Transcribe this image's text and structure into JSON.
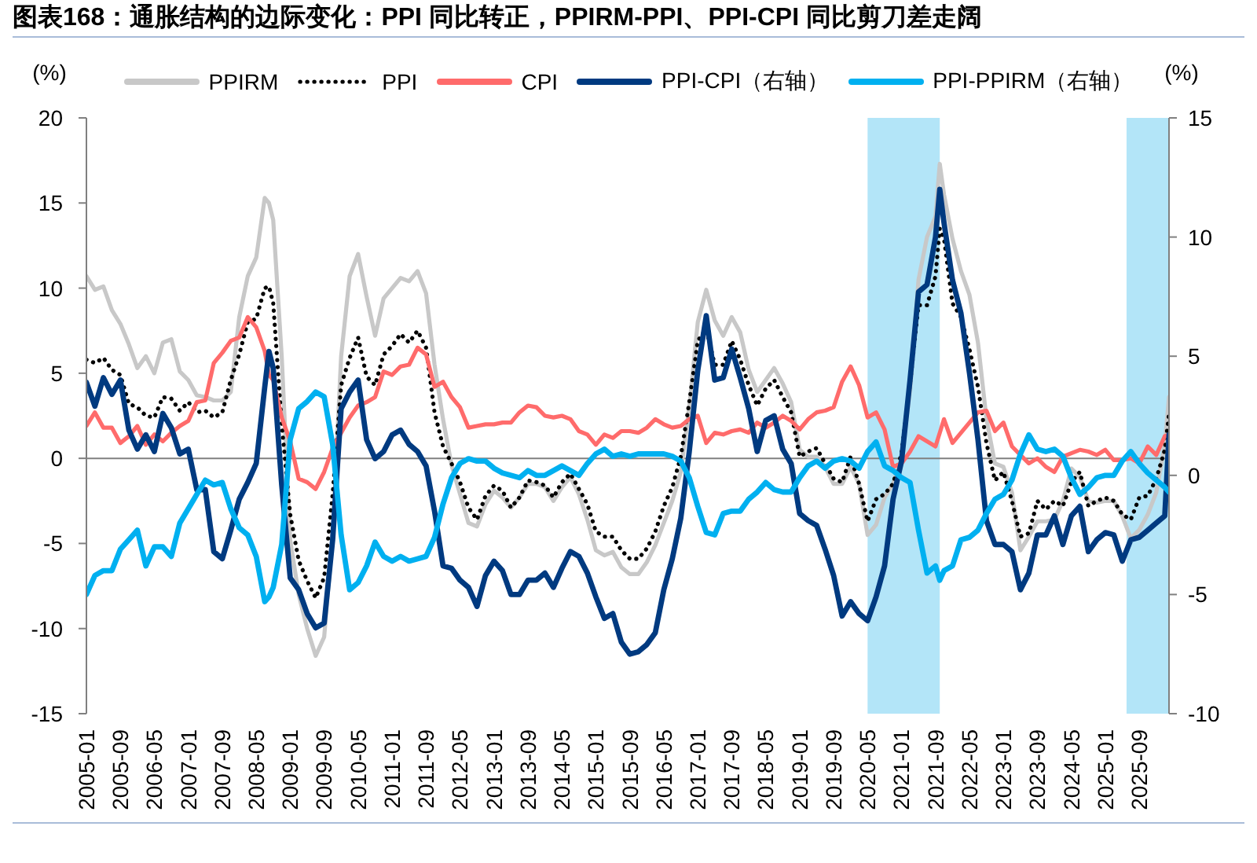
{
  "chart_data": {
    "type": "line",
    "title": "图表168：通胀结构的边际变化：PPI 同比转正，PPIRM-PPI、PPI-CPI 同比剪刀差走阔",
    "ylabel": "(%)",
    "y2label": "(%)",
    "x": [
      "2005-01",
      "2005-03",
      "2005-05",
      "2005-07",
      "2005-09",
      "2005-11",
      "2006-01",
      "2006-03",
      "2006-05",
      "2006-07",
      "2006-09",
      "2006-11",
      "2007-01",
      "2007-03",
      "2007-05",
      "2007-07",
      "2007-09",
      "2007-11",
      "2008-01",
      "2008-03",
      "2008-05",
      "2008-07",
      "2008-08",
      "2008-09",
      "2008-11",
      "2009-01",
      "2009-03",
      "2009-05",
      "2009-07",
      "2009-09",
      "2009-11",
      "2010-01",
      "2010-03",
      "2010-05",
      "2010-07",
      "2010-09",
      "2010-11",
      "2011-01",
      "2011-03",
      "2011-05",
      "2011-07",
      "2011-09",
      "2011-11",
      "2012-01",
      "2012-03",
      "2012-05",
      "2012-07",
      "2012-09",
      "2012-11",
      "2013-01",
      "2013-03",
      "2013-05",
      "2013-07",
      "2013-09",
      "2013-11",
      "2014-01",
      "2014-03",
      "2014-05",
      "2014-07",
      "2014-09",
      "2014-11",
      "2015-01",
      "2015-03",
      "2015-05",
      "2015-07",
      "2015-09",
      "2015-11",
      "2016-01",
      "2016-03",
      "2016-05",
      "2016-07",
      "2016-09",
      "2016-11",
      "2017-01",
      "2017-03",
      "2017-05",
      "2017-07",
      "2017-09",
      "2017-11",
      "2018-01",
      "2018-03",
      "2018-05",
      "2018-07",
      "2018-09",
      "2018-11",
      "2019-01",
      "2019-03",
      "2019-05",
      "2019-07",
      "2019-09",
      "2019-11",
      "2020-01",
      "2020-03",
      "2020-05",
      "2020-07",
      "2020-09",
      "2020-11",
      "2021-01",
      "2021-03",
      "2021-05",
      "2021-07",
      "2021-09",
      "2021-10",
      "2021-11",
      "2022-01",
      "2022-03",
      "2022-05",
      "2022-07",
      "2022-09",
      "2022-11",
      "2023-01",
      "2023-03",
      "2023-05",
      "2023-07",
      "2023-09",
      "2023-11",
      "2024-01",
      "2024-03",
      "2024-05",
      "2024-07",
      "2024-09",
      "2024-11",
      "2025-01",
      "2025-03",
      "2025-05",
      "2025-07",
      "2025-09",
      "2025-11",
      "2026-01",
      "2026-03",
      "2026-04"
    ],
    "xlim": [
      "2005-01",
      "2026-04"
    ],
    "xticks": [
      "2005-01",
      "2005-09",
      "2006-05",
      "2007-01",
      "2007-09",
      "2008-05",
      "2009-01",
      "2009-09",
      "2010-05",
      "2011-01",
      "2011-09",
      "2012-05",
      "2013-01",
      "2013-09",
      "2014-05",
      "2015-01",
      "2015-09",
      "2016-05",
      "2017-01",
      "2017-09",
      "2018-05",
      "2019-01",
      "2019-09",
      "2020-05",
      "2021-01",
      "2021-09",
      "2022-05",
      "2023-01",
      "2023-09",
      "2024-05",
      "2025-01",
      "2025-09"
    ],
    "ylim": [
      -15,
      20
    ],
    "yticks": [
      -15,
      -10,
      -5,
      0,
      5,
      10,
      15,
      20
    ],
    "y2lim": [
      -10,
      15
    ],
    "y2ticks": [
      -10,
      -5,
      0,
      5,
      10,
      15
    ],
    "series": [
      {
        "name": "PPIRM",
        "color": "#c8c8c8",
        "values": [
          10.7,
          9.9,
          10.1,
          8.7,
          7.9,
          6.7,
          5.3,
          6.0,
          5.0,
          6.8,
          7.0,
          5.1,
          4.6,
          3.7,
          3.6,
          3.4,
          3.4,
          3.9,
          8.3,
          10.7,
          11.8,
          15.3,
          15.0,
          14.0,
          6.0,
          -4.8,
          -8.0,
          -10.0,
          -11.6,
          -10.5,
          -4.5,
          6.0,
          10.7,
          12.0,
          9.5,
          7.2,
          9.4,
          10.0,
          10.6,
          10.4,
          11.0,
          9.7,
          5.5,
          2.3,
          -0.4,
          -2.1,
          -3.8,
          -4.0,
          -2.7,
          -1.9,
          -2.3,
          -2.9,
          -2.3,
          -1.5,
          -1.5,
          -1.7,
          -2.5,
          -1.7,
          -1.1,
          -2.1,
          -3.6,
          -5.4,
          -5.7,
          -5.5,
          -6.4,
          -6.8,
          -6.8,
          -6.1,
          -5.1,
          -3.8,
          -2.5,
          -0.8,
          3.0,
          8.0,
          9.9,
          8.1,
          7.2,
          8.3,
          7.4,
          5.2,
          3.9,
          4.6,
          5.3,
          4.4,
          3.3,
          0.5,
          0.1,
          0.1,
          -0.5,
          -1.5,
          -1.5,
          -0.5,
          -1.5,
          -4.5,
          -3.9,
          -2.3,
          -1.5,
          0.0,
          4.0,
          10.5,
          13.0,
          14.2,
          17.3,
          15.5,
          12.9,
          11.0,
          9.6,
          6.8,
          2.3,
          -0.3,
          -0.5,
          -2.0,
          -5.4,
          -4.6,
          -3.7,
          -3.7,
          -3.6,
          -2.5,
          -0.6,
          -1.1,
          -2.5,
          -2.6,
          -2.5,
          -2.5,
          -3.4,
          -4.7,
          -4.2,
          -3.3,
          -2.0,
          0.8,
          3.6
        ]
      },
      {
        "name": "PPI",
        "color": "#000000",
        "line_style": "dotted",
        "values": [
          5.8,
          5.6,
          5.9,
          5.2,
          4.9,
          3.2,
          3.0,
          2.5,
          2.4,
          3.6,
          3.5,
          2.8,
          3.3,
          2.7,
          2.8,
          2.4,
          2.7,
          4.6,
          6.1,
          8.0,
          8.2,
          10.0,
          10.1,
          9.1,
          2.0,
          -3.3,
          -6.0,
          -7.2,
          -8.2,
          -7.0,
          -2.1,
          4.3,
          5.9,
          7.1,
          4.8,
          4.3,
          6.1,
          6.6,
          7.3,
          6.8,
          7.5,
          6.5,
          2.7,
          0.7,
          -0.3,
          -1.4,
          -2.9,
          -3.6,
          -2.2,
          -1.6,
          -1.9,
          -2.9,
          -2.3,
          -1.3,
          -1.4,
          -1.6,
          -2.3,
          -1.4,
          -0.9,
          -1.8,
          -2.7,
          -4.3,
          -4.6,
          -4.6,
          -5.4,
          -5.9,
          -5.9,
          -5.3,
          -4.3,
          -2.8,
          -1.7,
          0.1,
          3.3,
          6.9,
          7.6,
          5.5,
          5.5,
          6.9,
          5.8,
          4.3,
          3.1,
          4.1,
          4.6,
          3.6,
          2.7,
          0.1,
          0.4,
          0.6,
          -0.3,
          -1.2,
          -1.4,
          0.1,
          -1.5,
          -3.7,
          -2.4,
          -2.1,
          -1.5,
          0.3,
          4.4,
          9.0,
          9.0,
          10.7,
          13.5,
          12.9,
          9.1,
          8.3,
          6.4,
          4.2,
          0.9,
          -1.3,
          -0.8,
          -2.5,
          -4.6,
          -4.4,
          -2.5,
          -3.0,
          -2.5,
          -2.8,
          -1.4,
          -0.8,
          -2.8,
          -2.5,
          -2.3,
          -2.5,
          -3.3,
          -3.6,
          -2.3,
          -2.2,
          -1.2,
          0.5,
          2.6
        ]
      },
      {
        "name": "CPI",
        "color": "#ff6b6b",
        "values": [
          1.9,
          2.7,
          1.8,
          1.8,
          0.9,
          1.3,
          1.9,
          0.8,
          1.4,
          1.0,
          1.5,
          1.9,
          2.2,
          3.3,
          3.4,
          5.6,
          6.2,
          6.9,
          7.1,
          8.3,
          7.7,
          6.3,
          4.9,
          4.6,
          2.4,
          1.0,
          -1.2,
          -1.4,
          -1.8,
          -0.8,
          0.6,
          1.5,
          2.4,
          3.1,
          3.3,
          3.6,
          5.1,
          4.9,
          5.4,
          5.5,
          6.5,
          6.1,
          4.2,
          4.5,
          3.6,
          3.0,
          1.8,
          1.9,
          2.0,
          2.0,
          2.1,
          2.1,
          2.7,
          3.1,
          3.0,
          2.5,
          2.4,
          2.5,
          2.3,
          1.6,
          1.4,
          0.8,
          1.4,
          1.2,
          1.6,
          1.6,
          1.5,
          1.8,
          2.3,
          2.0,
          1.8,
          1.9,
          2.3,
          2.5,
          0.9,
          1.5,
          1.4,
          1.6,
          1.7,
          1.5,
          2.1,
          1.8,
          2.1,
          2.5,
          2.2,
          1.7,
          2.3,
          2.7,
          2.8,
          3.0,
          4.5,
          5.4,
          4.3,
          2.4,
          2.7,
          1.7,
          -0.5,
          -0.3,
          0.4,
          1.3,
          1.0,
          0.7,
          1.5,
          2.3,
          0.9,
          1.5,
          2.1,
          2.7,
          2.8,
          1.6,
          2.1,
          0.7,
          0.2,
          -0.3,
          0.0,
          -0.5,
          -0.8,
          0.1,
          0.3,
          0.5,
          0.4,
          0.2,
          0.5,
          -0.1,
          -0.1,
          0.0,
          -0.3,
          0.7,
          0.2,
          1.3,
          1.4
        ]
      },
      {
        "name": "PPI-CPI（右轴）",
        "color": "#003a80",
        "axis": "y2",
        "values": [
          3.9,
          2.9,
          4.1,
          3.4,
          4.0,
          1.9,
          1.1,
          1.7,
          1.0,
          2.6,
          2.0,
          0.9,
          1.1,
          -0.6,
          -0.6,
          -3.2,
          -3.5,
          -2.3,
          -1.0,
          -0.3,
          0.5,
          3.7,
          5.2,
          4.5,
          -0.4,
          -4.3,
          -4.8,
          -5.8,
          -6.4,
          -6.2,
          -2.7,
          2.8,
          3.5,
          4.0,
          1.5,
          0.7,
          1.0,
          1.7,
          1.9,
          1.3,
          1.0,
          0.4,
          -1.5,
          -3.8,
          -3.9,
          -4.4,
          -4.7,
          -5.5,
          -4.2,
          -3.6,
          -4.0,
          -5.0,
          -5.0,
          -4.4,
          -4.4,
          -4.1,
          -4.7,
          -3.9,
          -3.2,
          -3.4,
          -4.1,
          -5.1,
          -6.0,
          -5.8,
          -7.0,
          -7.5,
          -7.4,
          -7.1,
          -6.6,
          -4.8,
          -3.5,
          -1.8,
          1.0,
          4.4,
          6.7,
          4.0,
          4.1,
          5.3,
          4.1,
          2.8,
          1.0,
          2.3,
          2.5,
          1.1,
          0.5,
          -1.6,
          -1.9,
          -2.1,
          -3.1,
          -4.2,
          -5.9,
          -5.3,
          -5.8,
          -6.1,
          -5.1,
          -3.8,
          -1.0,
          0.6,
          4.0,
          7.7,
          8.0,
          10.0,
          12.0,
          10.6,
          8.2,
          6.8,
          4.3,
          1.5,
          -1.9,
          -2.9,
          -2.9,
          -3.2,
          -4.8,
          -4.1,
          -2.5,
          -2.5,
          -1.7,
          -2.9,
          -1.7,
          -1.3,
          -3.2,
          -2.7,
          -2.4,
          -2.5,
          -3.6,
          -2.7,
          -2.6,
          -2.3,
          -2.0,
          -1.7,
          1.7
        ]
      },
      {
        "name": "PPI-PPIRM（右轴）",
        "color": "#00b0f0",
        "axis": "y2",
        "values": [
          -5.0,
          -4.2,
          -4.0,
          -4.0,
          -3.1,
          -2.7,
          -2.3,
          -3.8,
          -3.0,
          -3.0,
          -3.4,
          -2.0,
          -1.4,
          -0.8,
          -0.2,
          -0.4,
          -0.3,
          -1.4,
          -2.2,
          -2.5,
          -3.4,
          -5.3,
          -5.1,
          -4.7,
          -2.9,
          1.5,
          2.8,
          3.1,
          3.5,
          3.3,
          1.3,
          -2.5,
          -4.8,
          -4.5,
          -3.8,
          -2.8,
          -3.4,
          -3.6,
          -3.4,
          -3.6,
          -3.5,
          -3.4,
          -2.6,
          -1.2,
          -0.1,
          0.5,
          0.7,
          0.6,
          0.6,
          0.3,
          0.1,
          0.0,
          -0.1,
          0.2,
          0.0,
          0.0,
          0.2,
          0.4,
          0.2,
          0.0,
          0.5,
          0.9,
          1.1,
          0.8,
          0.9,
          0.8,
          0.9,
          0.9,
          0.9,
          0.9,
          0.8,
          0.6,
          -0.1,
          -1.3,
          -2.4,
          -2.5,
          -1.6,
          -1.5,
          -1.5,
          -1.0,
          -0.7,
          -0.3,
          -0.6,
          -0.7,
          -0.7,
          -0.1,
          0.4,
          0.6,
          0.3,
          0.6,
          0.7,
          0.6,
          0.3,
          1.0,
          1.4,
          0.4,
          0.2,
          -0.1,
          -0.3,
          -2.3,
          -4.1,
          -3.8,
          -4.4,
          -4.0,
          -3.8,
          -2.7,
          -2.6,
          -2.3,
          -1.6,
          -1.0,
          -0.8,
          -0.2,
          0.9,
          1.7,
          1.1,
          1.0,
          1.1,
          0.8,
          -0.1,
          -0.8,
          -0.5,
          -0.1,
          0.0,
          0.0,
          0.6,
          1.0,
          0.5,
          0.1,
          -0.2,
          -0.5,
          -0.7
        ]
      }
    ],
    "bands": [
      {
        "axis": "x",
        "from": "2020-05",
        "to": "2021-10",
        "color": "#b3e5f8"
      },
      {
        "axis": "x",
        "from": "2025-06",
        "to": "2026-04",
        "color": "#b3e5f8"
      }
    ],
    "legend": "top",
    "marker": "none",
    "line_style": "solid"
  }
}
